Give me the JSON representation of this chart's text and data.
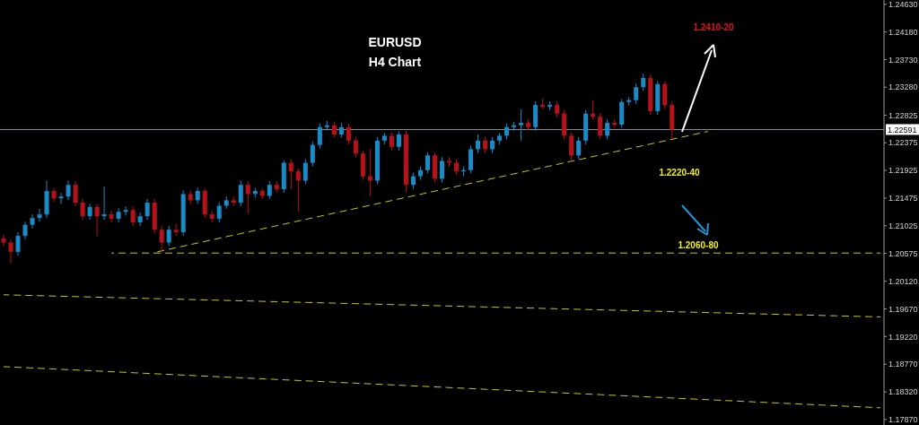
{
  "chart_data": {
    "type": "candlestick",
    "title": "EURUSD",
    "subtitle": "H4 Chart",
    "categories": [
      null,
      null,
      null,
      null,
      null,
      null,
      null,
      null,
      null,
      null,
      null,
      null,
      null,
      null,
      null,
      null,
      null,
      null,
      null,
      null,
      null,
      null,
      null,
      null,
      null,
      null,
      null,
      null,
      null,
      null,
      null,
      null,
      null,
      null,
      null,
      null,
      null,
      null,
      null,
      null,
      null,
      null,
      null,
      null,
      null,
      null,
      null,
      null,
      null,
      null,
      null,
      null,
      null,
      null,
      null,
      null,
      null,
      null,
      null,
      null,
      null,
      null,
      null,
      null,
      null,
      null,
      null,
      null,
      null,
      null,
      null,
      null,
      null,
      null,
      null,
      null,
      null,
      null,
      null,
      null,
      null,
      null,
      null,
      null,
      null,
      null,
      null,
      null,
      null,
      null,
      null,
      null,
      null,
      null,
      null,
      null,
      null,
      null,
      null,
      null,
      null,
      null,
      null,
      null,
      null,
      null,
      null,
      null,
      null,
      null,
      null,
      null,
      null,
      null,
      null,
      null,
      null,
      null,
      null,
      null,
      null,
      null,
      null
    ],
    "ohlc": [
      [
        1.2082,
        1.2088,
        1.2069,
        1.2075
      ],
      [
        1.2075,
        1.208,
        1.2041,
        1.206
      ],
      [
        1.206,
        1.2092,
        1.2054,
        1.2086
      ],
      [
        1.2086,
        1.2109,
        1.208,
        1.2104
      ],
      [
        1.2104,
        1.2121,
        1.2098,
        1.2115
      ],
      [
        1.2115,
        1.213,
        1.2109,
        1.2121
      ],
      [
        1.2121,
        1.2176,
        1.2115,
        1.2159
      ],
      [
        1.2159,
        1.2164,
        1.2141,
        1.2147
      ],
      [
        1.2147,
        1.2156,
        1.2138,
        1.215
      ],
      [
        1.215,
        1.2176,
        1.2144,
        1.2169
      ],
      [
        1.2169,
        1.2175,
        1.2134,
        1.214
      ],
      [
        1.214,
        1.2146,
        1.2112,
        1.2118
      ],
      [
        1.2118,
        1.2138,
        1.2112,
        1.2133
      ],
      [
        1.2133,
        1.2138,
        1.2085,
        1.2118
      ],
      [
        1.2118,
        1.2166,
        1.2112,
        1.2121
      ],
      [
        1.2121,
        1.2127,
        1.2108,
        1.2114
      ],
      [
        1.2114,
        1.2131,
        1.2108,
        1.2125
      ],
      [
        1.2125,
        1.2134,
        1.2119,
        1.2128
      ],
      [
        1.2128,
        1.2134,
        1.2102,
        1.2108
      ],
      [
        1.2108,
        1.2124,
        1.2102,
        1.2118
      ],
      [
        1.2118,
        1.2146,
        1.2112,
        1.214
      ],
      [
        1.214,
        1.2146,
        1.209,
        1.2096
      ],
      [
        1.2096,
        1.2102,
        1.2059,
        1.2075
      ],
      [
        1.2075,
        1.2102,
        1.2069,
        1.2096
      ],
      [
        1.2096,
        1.2106,
        1.2086,
        1.2092
      ],
      [
        1.2092,
        1.216,
        1.2086,
        1.2154
      ],
      [
        1.2154,
        1.216,
        1.2138,
        1.2144
      ],
      [
        1.2144,
        1.2164,
        1.2138,
        1.2159
      ],
      [
        1.2159,
        1.2164,
        1.2115,
        1.2121
      ],
      [
        1.2121,
        1.2127,
        1.2108,
        1.2114
      ],
      [
        1.2114,
        1.2141,
        1.2108,
        1.2135
      ],
      [
        1.2135,
        1.215,
        1.213,
        1.2144
      ],
      [
        1.2144,
        1.215,
        1.2134,
        1.214
      ],
      [
        1.214,
        1.2176,
        1.2134,
        1.2169
      ],
      [
        1.2169,
        1.2175,
        1.2122,
        1.2154
      ],
      [
        1.2154,
        1.2164,
        1.2148,
        1.2159
      ],
      [
        1.2159,
        1.2164,
        1.2146,
        1.2151
      ],
      [
        1.2151,
        1.2175,
        1.2146,
        1.2169
      ],
      [
        1.2169,
        1.2175,
        1.2156,
        1.2162
      ],
      [
        1.2162,
        1.2209,
        1.2156,
        1.2205
      ],
      [
        1.2205,
        1.2211,
        1.2162,
        1.2191
      ],
      [
        1.2191,
        1.2196,
        1.2125,
        1.2176
      ],
      [
        1.2176,
        1.2211,
        1.217,
        1.2205
      ],
      [
        1.2205,
        1.224,
        1.2199,
        1.2234
      ],
      [
        1.2234,
        1.2269,
        1.2228,
        1.2263
      ],
      [
        1.2263,
        1.2273,
        1.2257,
        1.2266
      ],
      [
        1.2266,
        1.2272,
        1.2246,
        1.2251
      ],
      [
        1.2251,
        1.227,
        1.2246,
        1.2263
      ],
      [
        1.2263,
        1.2269,
        1.2235,
        1.2241
      ],
      [
        1.2241,
        1.2247,
        1.2214,
        1.222
      ],
      [
        1.222,
        1.2225,
        1.2177,
        1.2183
      ],
      [
        1.2183,
        1.2227,
        1.2151,
        1.2176
      ],
      [
        1.2176,
        1.2247,
        1.217,
        1.2241
      ],
      [
        1.2241,
        1.2254,
        1.2235,
        1.2249
      ],
      [
        1.2249,
        1.2254,
        1.2225,
        1.2231
      ],
      [
        1.2231,
        1.2256,
        1.2225,
        1.2251
      ],
      [
        1.2251,
        1.2257,
        1.2157,
        1.2169
      ],
      [
        1.2169,
        1.2189,
        1.2163,
        1.2183
      ],
      [
        1.2183,
        1.2199,
        1.2177,
        1.2193
      ],
      [
        1.2193,
        1.2222,
        1.2188,
        1.2217
      ],
      [
        1.2217,
        1.2222,
        1.2173,
        1.2179
      ],
      [
        1.2179,
        1.2214,
        1.2173,
        1.2208
      ],
      [
        1.2208,
        1.2214,
        1.2199,
        1.2205
      ],
      [
        1.2205,
        1.2211,
        1.2185,
        1.2191
      ],
      [
        1.2191,
        1.2199,
        1.2183,
        1.2193
      ],
      [
        1.2193,
        1.2233,
        1.2188,
        1.2227
      ],
      [
        1.2227,
        1.2251,
        1.2221,
        1.2241
      ],
      [
        1.2241,
        1.2247,
        1.2221,
        1.2227
      ],
      [
        1.2227,
        1.2247,
        1.2221,
        1.2241
      ],
      [
        1.2241,
        1.2254,
        1.2235,
        1.2249
      ],
      [
        1.2249,
        1.2269,
        1.2243,
        1.2263
      ],
      [
        1.2263,
        1.2272,
        1.2257,
        1.2266
      ],
      [
        1.2266,
        1.2292,
        1.2241,
        1.227
      ],
      [
        1.227,
        1.2276,
        1.2257,
        1.2263
      ],
      [
        1.2263,
        1.2305,
        1.2257,
        1.2299
      ],
      [
        1.2299,
        1.2309,
        1.2293,
        1.2296
      ],
      [
        1.2296,
        1.2305,
        1.2291,
        1.2299
      ],
      [
        1.2299,
        1.2305,
        1.2279,
        1.2285
      ],
      [
        1.2285,
        1.2291,
        1.2243,
        1.2249
      ],
      [
        1.2249,
        1.2254,
        1.2208,
        1.2217
      ],
      [
        1.2217,
        1.2247,
        1.2211,
        1.2241
      ],
      [
        1.2241,
        1.2291,
        1.2235,
        1.2285
      ],
      [
        1.2285,
        1.2307,
        1.2275,
        1.228
      ],
      [
        1.228,
        1.2286,
        1.2243,
        1.2249
      ],
      [
        1.2249,
        1.2276,
        1.2243,
        1.227
      ],
      [
        1.227,
        1.2276,
        1.2262,
        1.2267
      ],
      [
        1.2267,
        1.2309,
        1.2262,
        1.2304
      ],
      [
        1.2304,
        1.2312,
        1.2298,
        1.2307
      ],
      [
        1.2307,
        1.2334,
        1.2301,
        1.2328
      ],
      [
        1.2328,
        1.235,
        1.2322,
        1.2343
      ],
      [
        1.2343,
        1.2349,
        1.2283,
        1.2289
      ],
      [
        1.2289,
        1.2338,
        1.2283,
        1.2333
      ],
      [
        1.2333,
        1.2338,
        1.2293,
        1.2299
      ],
      [
        1.2299,
        1.2305,
        1.2244,
        1.2259
      ],
      null,
      null,
      null,
      null,
      null,
      null,
      null,
      null,
      null,
      null,
      null,
      null,
      null,
      null,
      null,
      null,
      null,
      null,
      null,
      null,
      null,
      null,
      null,
      null,
      null,
      null,
      null,
      null,
      null
    ],
    "colors": [
      "#b5121b",
      "#b5121b",
      "#1b8bc7",
      "#1b8bc7",
      "#1b8bc7",
      "#1b8bc7",
      "#1b8bc7",
      "#b5121b",
      "#1b8bc7",
      "#1b8bc7",
      "#b5121b",
      "#b5121b",
      "#1b8bc7",
      "#b5121b",
      "#1b8bc7",
      "#b5121b",
      "#1b8bc7",
      "#1b8bc7",
      "#b5121b",
      "#1b8bc7",
      "#1b8bc7",
      "#b5121b",
      "#b5121b",
      "#1b8bc7",
      "#b5121b",
      "#1b8bc7",
      "#b5121b",
      "#1b8bc7",
      "#b5121b",
      "#b5121b",
      "#1b8bc7",
      "#1b8bc7",
      "#b5121b",
      "#1b8bc7",
      "#b5121b",
      "#1b8bc7",
      "#b5121b",
      "#1b8bc7",
      "#b5121b",
      "#1b8bc7",
      "#b5121b",
      "#b5121b",
      "#1b8bc7",
      "#1b8bc7",
      "#1b8bc7",
      "#1b8bc7",
      "#b5121b",
      "#1b8bc7",
      "#b5121b",
      "#b5121b",
      "#b5121b",
      "#b5121b",
      "#1b8bc7",
      "#1b8bc7",
      "#b5121b",
      "#1b8bc7",
      "#b5121b",
      "#1b8bc7",
      "#1b8bc7",
      "#1b8bc7",
      "#b5121b",
      "#1b8bc7",
      "#b5121b",
      "#b5121b",
      "#1b8bc7",
      "#1b8bc7",
      "#1b8bc7",
      "#b5121b",
      "#1b8bc7",
      "#1b8bc7",
      "#1b8bc7",
      "#1b8bc7",
      "#1b8bc7",
      "#b5121b",
      "#1b8bc7",
      "#b5121b",
      "#1b8bc7",
      "#b5121b",
      "#b5121b",
      "#b5121b",
      "#1b8bc7",
      "#1b8bc7",
      "#b5121b",
      "#b5121b",
      "#1b8bc7",
      "#b5121b",
      "#1b8bc7",
      "#1b8bc7",
      "#1b8bc7",
      "#1b8bc7",
      "#b5121b",
      "#1b8bc7",
      "#b5121b",
      "#b5121b",
      null,
      null,
      null,
      null,
      null,
      null,
      null,
      null,
      null,
      null,
      null,
      null,
      null,
      null,
      null,
      null,
      null,
      null,
      null,
      null,
      null,
      null,
      null,
      null,
      null,
      null,
      null,
      null,
      null
    ],
    "series": [
      {
        "type": "line",
        "color": "#c8c814",
        "line_style": "dashed",
        "values": [
          null,
          null,
          null,
          null,
          null,
          null,
          null,
          null,
          null,
          null,
          null,
          null,
          null,
          null,
          null,
          null,
          null,
          null,
          null,
          null,
          null,
          1.2059,
          null,
          null,
          null,
          null,
          null,
          null,
          null,
          null,
          null,
          null,
          null,
          null,
          null,
          null,
          null,
          null,
          null,
          null,
          null,
          null,
          null,
          null,
          null,
          null,
          null,
          null,
          null,
          null,
          null,
          null,
          null,
          null,
          null,
          null,
          null,
          null,
          null,
          null,
          null,
          null,
          null,
          null,
          null,
          null,
          null,
          null,
          null,
          null,
          null,
          null,
          null,
          null,
          null,
          null,
          null,
          null,
          null,
          null,
          null,
          null,
          null,
          null,
          null,
          null,
          null,
          null,
          null,
          null,
          null,
          null,
          null,
          null,
          null,
          null,
          null,
          null,
          1.2256,
          null,
          null,
          null,
          null,
          null,
          null,
          null,
          null,
          null,
          null,
          null,
          null,
          null,
          null,
          null,
          null,
          null,
          null,
          null,
          null,
          null,
          null,
          null,
          null
        ]
      },
      {
        "type": "line",
        "color": "#c8c814",
        "line_style": "dashed",
        "values": [
          null,
          null,
          null,
          null,
          null,
          null,
          null,
          null,
          null,
          null,
          null,
          null,
          null,
          null,
          null,
          1.2058,
          null,
          null,
          null,
          null,
          null,
          null,
          null,
          null,
          null,
          null,
          null,
          null,
          null,
          null,
          null,
          null,
          null,
          null,
          null,
          null,
          null,
          null,
          null,
          null,
          null,
          null,
          null,
          null,
          null,
          null,
          null,
          null,
          null,
          null,
          null,
          null,
          null,
          null,
          null,
          null,
          null,
          null,
          null,
          null,
          null,
          null,
          null,
          null,
          null,
          null,
          null,
          null,
          null,
          null,
          null,
          null,
          null,
          null,
          null,
          null,
          null,
          null,
          null,
          null,
          null,
          null,
          null,
          null,
          null,
          null,
          null,
          null,
          null,
          null,
          null,
          null,
          null,
          null,
          null,
          null,
          null,
          null,
          null,
          null,
          null,
          null,
          null,
          null,
          null,
          null,
          null,
          null,
          null,
          null,
          null,
          null,
          null,
          null,
          null,
          null,
          null,
          null,
          null,
          null,
          null,
          null,
          1.2058
        ]
      },
      {
        "type": "line",
        "color": "#c8c814",
        "line_style": "dashed",
        "values": [
          1.199,
          null,
          null,
          null,
          null,
          null,
          null,
          null,
          null,
          null,
          null,
          null,
          null,
          null,
          null,
          null,
          null,
          null,
          null,
          null,
          null,
          null,
          null,
          null,
          null,
          null,
          null,
          null,
          null,
          null,
          null,
          null,
          null,
          null,
          null,
          null,
          null,
          null,
          null,
          null,
          null,
          null,
          null,
          null,
          null,
          null,
          null,
          null,
          null,
          null,
          null,
          null,
          null,
          null,
          null,
          null,
          null,
          null,
          null,
          null,
          null,
          null,
          null,
          null,
          null,
          null,
          null,
          null,
          null,
          null,
          null,
          null,
          null,
          null,
          null,
          null,
          null,
          null,
          null,
          null,
          null,
          null,
          null,
          null,
          null,
          null,
          null,
          null,
          null,
          null,
          null,
          null,
          null,
          null,
          null,
          null,
          null,
          null,
          null,
          null,
          null,
          null,
          null,
          null,
          null,
          null,
          null,
          null,
          null,
          null,
          null,
          null,
          null,
          null,
          null,
          null,
          null,
          null,
          null,
          null,
          null,
          null,
          1.1954
        ]
      },
      {
        "type": "line",
        "color": "#c8c814",
        "line_style": "dashed",
        "values": [
          1.1873,
          null,
          null,
          null,
          null,
          null,
          null,
          null,
          null,
          null,
          null,
          null,
          null,
          null,
          null,
          null,
          null,
          null,
          null,
          null,
          null,
          null,
          null,
          null,
          null,
          null,
          null,
          null,
          null,
          null,
          null,
          null,
          null,
          null,
          null,
          null,
          null,
          null,
          null,
          null,
          null,
          null,
          null,
          null,
          null,
          null,
          null,
          null,
          null,
          null,
          null,
          null,
          null,
          null,
          null,
          null,
          null,
          null,
          null,
          null,
          null,
          null,
          null,
          null,
          null,
          null,
          null,
          null,
          null,
          null,
          null,
          null,
          null,
          null,
          null,
          null,
          null,
          null,
          null,
          null,
          null,
          null,
          null,
          null,
          null,
          null,
          null,
          null,
          null,
          null,
          null,
          null,
          null,
          null,
          null,
          null,
          null,
          null,
          null,
          null,
          null,
          null,
          null,
          null,
          null,
          null,
          null,
          null,
          null,
          null,
          null,
          null,
          null,
          null,
          null,
          null,
          null,
          null,
          null,
          null,
          null,
          null,
          1.1806
        ]
      }
    ],
    "ylim": [
      1.1778,
      1.247
    ],
    "yticks": [
      {
        "value": 1.2463,
        "label": "1.24630"
      },
      {
        "value": 1.2418,
        "label": "1.24180"
      },
      {
        "value": 1.2373,
        "label": "1.23730"
      },
      {
        "value": 1.2328,
        "label": "1.23280"
      },
      {
        "value": 1.22825,
        "label": "1.22825"
      },
      {
        "value": 1.22375,
        "label": "1.22375"
      },
      {
        "value": 1.21925,
        "label": "1.21925"
      },
      {
        "value": 1.21475,
        "label": "1.21475"
      },
      {
        "value": 1.21025,
        "label": "1.21025"
      },
      {
        "value": 1.20575,
        "label": "1.20575"
      },
      {
        "value": 1.2012,
        "label": "1.20120"
      },
      {
        "value": 1.1967,
        "label": "1.19670"
      },
      {
        "value": 1.1922,
        "label": "1.19220"
      },
      {
        "value": 1.1877,
        "label": "1.18770"
      },
      {
        "value": 1.1832,
        "label": "1.18320"
      },
      {
        "value": 1.1787,
        "label": "1.17870"
      }
    ],
    "tick_labels": "y",
    "ref_lines": [
      {
        "axis": "y",
        "value": 1.22591,
        "label": "1.22591",
        "color": "#8a92a0"
      }
    ],
    "annotations": [
      "1.2410-20",
      "1.2220-40",
      "1.2060-80"
    ]
  }
}
